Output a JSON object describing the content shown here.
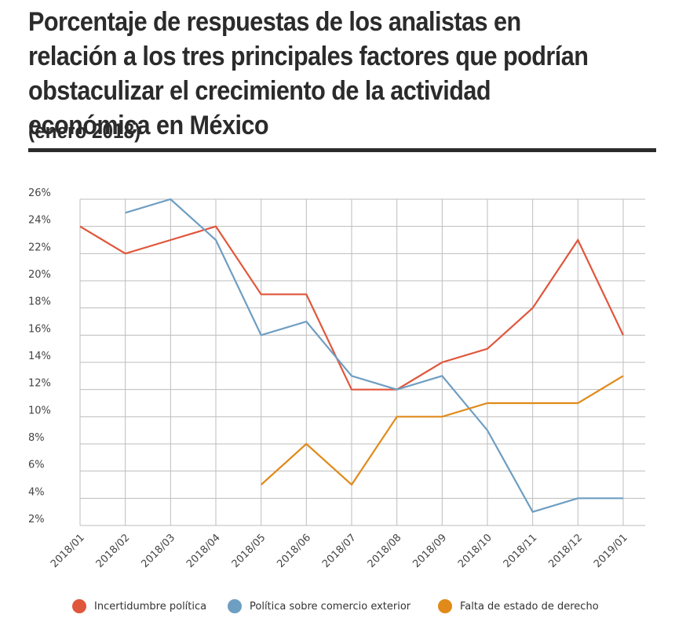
{
  "header": {
    "title": "Porcentaje de respuestas de los analistas en relación a los tres principales factores que podrían obstaculizar el crecimiento de la actividad económica en México",
    "subtitle": "(enero 2018)"
  },
  "chart_data": {
    "type": "line",
    "categories": [
      "2018/01",
      "2018/02",
      "2018/03",
      "2018/04",
      "2018/05",
      "2018/06",
      "2018/07",
      "2018/08",
      "2018/09",
      "2018/10",
      "2018/11",
      "2018/12",
      "2019/01"
    ],
    "y_ticks": [
      "26%",
      "24%",
      "22%",
      "20%",
      "18%",
      "16%",
      "14%",
      "12%",
      "10%",
      "8%",
      "6%",
      "4%",
      "2%"
    ],
    "ylim": [
      2,
      26
    ],
    "grid": true,
    "legend_position": "bottom",
    "series": [
      {
        "name": "Incertidumbre política",
        "color": "#e0563b",
        "values": [
          24,
          22,
          23,
          24,
          19,
          19,
          12,
          12,
          14,
          15,
          18,
          23,
          16
        ]
      },
      {
        "name": "Política sobre comercio exterior",
        "color": "#6e9ec2",
        "values": [
          null,
          25,
          26,
          23,
          16,
          17,
          13,
          12,
          13,
          9,
          3,
          4,
          4
        ]
      },
      {
        "name": "Falta de estado de derecho",
        "color": "#e08a1a",
        "values": [
          null,
          null,
          null,
          null,
          5,
          8,
          5,
          10,
          10,
          11,
          11,
          11,
          13
        ]
      }
    ]
  }
}
